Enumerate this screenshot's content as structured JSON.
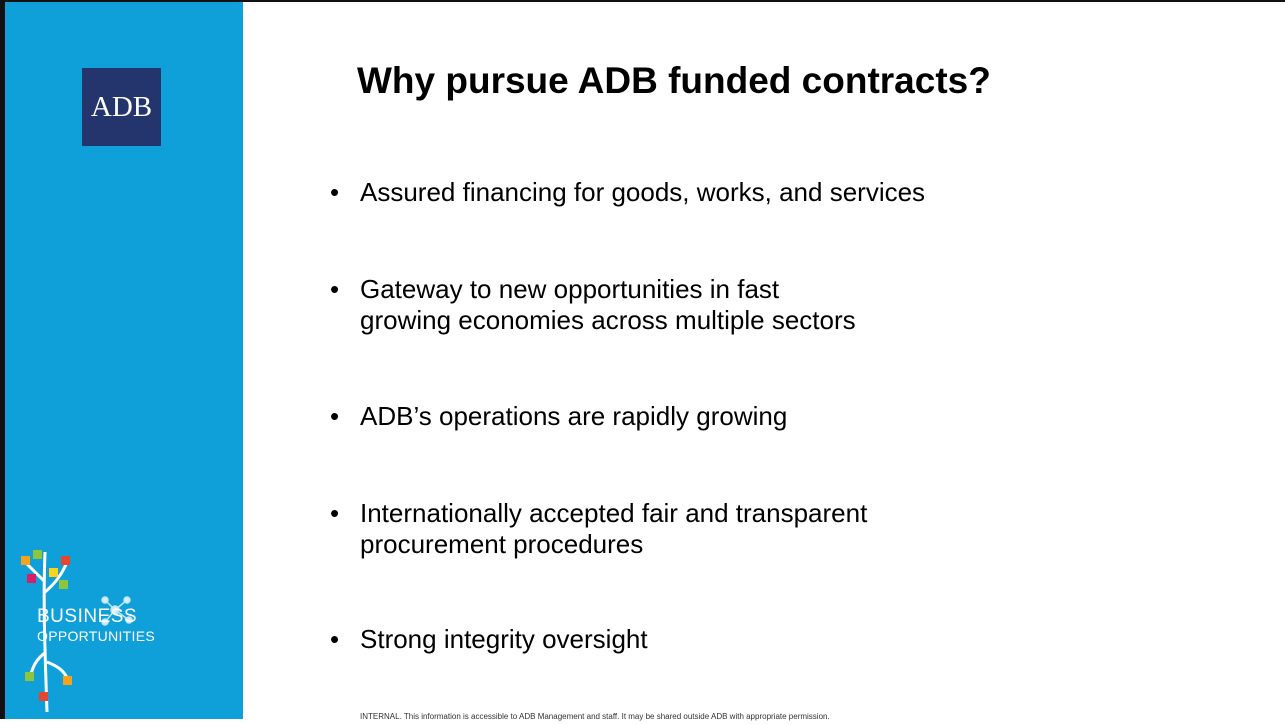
{
  "sidebar": {
    "logo": "ADB",
    "brand_line1": "BUSINESS",
    "brand_line2": "OPPORTUNITIES"
  },
  "slide": {
    "title": "Why pursue ADB funded contracts?",
    "bullets": [
      "Assured financing for goods, works, and services",
      "Gateway to new opportunities in fast growing economies across multiple sectors",
      "ADB’s operations are rapidly growing",
      "Internationally accepted fair and transparent procurement procedures",
      "Strong integrity oversight"
    ],
    "footer": "INTERNAL. This information is accessible to ADB Management and staff. It may be shared outside ADB with appropriate permission."
  }
}
